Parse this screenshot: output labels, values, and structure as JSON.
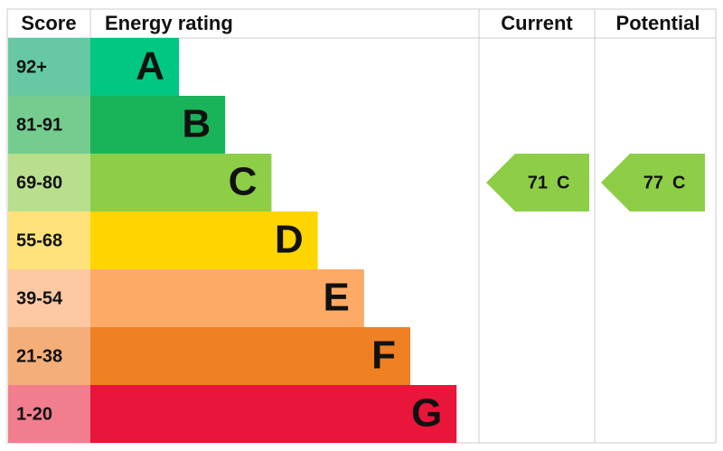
{
  "header": {
    "score": "Score",
    "rating": "Energy rating",
    "current": "Current",
    "potential": "Potential"
  },
  "bands": [
    {
      "range": "92+",
      "letter": "A",
      "color": "#00c781",
      "light": "#66c9a3"
    },
    {
      "range": "81-91",
      "letter": "B",
      "color": "#19b459",
      "light": "#74cc8e"
    },
    {
      "range": "69-80",
      "letter": "C",
      "color": "#8dce46",
      "light": "#b8df8c"
    },
    {
      "range": "55-68",
      "letter": "D",
      "color": "#ffd500",
      "light": "#ffe37a"
    },
    {
      "range": "39-54",
      "letter": "E",
      "color": "#fcaa65",
      "light": "#fcc9a3"
    },
    {
      "range": "21-38",
      "letter": "F",
      "color": "#ef8023",
      "light": "#f4ae78"
    },
    {
      "range": "1-20",
      "letter": "G",
      "color": "#e9153b",
      "light": "#f27d8e"
    }
  ],
  "current": {
    "score": 71,
    "band": "C"
  },
  "potential": {
    "score": 77,
    "band": "C"
  }
}
